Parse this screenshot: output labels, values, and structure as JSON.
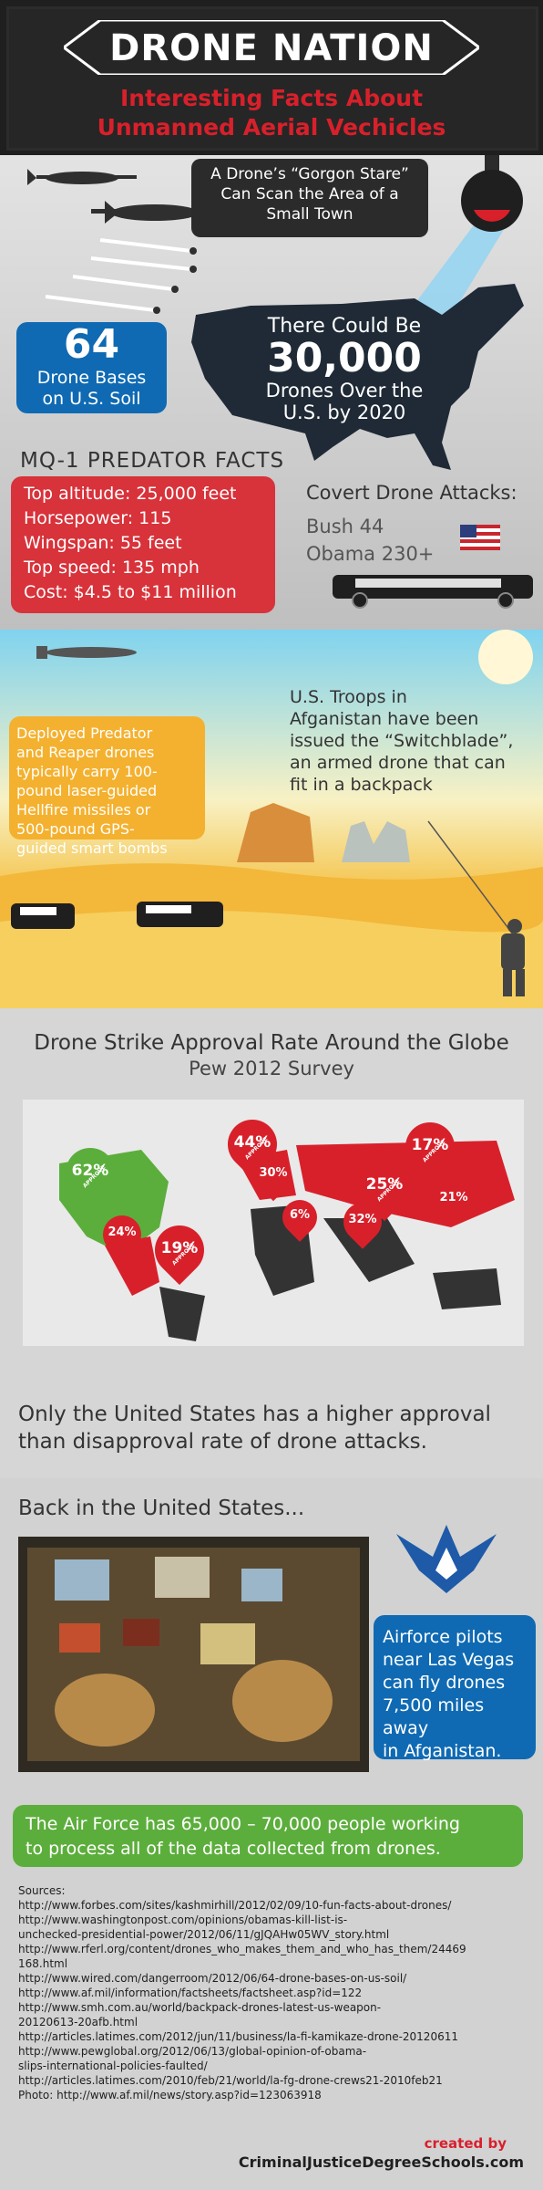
{
  "header": {
    "title": "DRONE NATION",
    "subtitle_line1": "Interesting Facts About",
    "subtitle_line2": "Unmanned Aerial Vechicles"
  },
  "gorgon": {
    "line1": "A Drone’s “Gorgon Stare”",
    "line2": "Can Scan the Area of a",
    "line3": "Small Town"
  },
  "us_map": {
    "line1": "There Could Be",
    "number": "30,000",
    "line3": "Drones Over the",
    "line4": "U.S. by 2020"
  },
  "bases": {
    "number": "64",
    "line1": "Drone Bases",
    "line2": "on U.S. Soil"
  },
  "predator": {
    "heading": "MQ-1 PREDATOR FACTS",
    "facts": [
      "Top altitude: 25,000 feet",
      "Horsepower: 115",
      "Wingspan: 55 feet",
      "Top speed: 135 mph",
      "Cost: $4.5 to $11 million"
    ]
  },
  "covert": {
    "heading": "Covert Drone Attacks:",
    "rows": [
      "Bush 44",
      "Obama 230+"
    ]
  },
  "desert": {
    "deployed": [
      "Deployed Predator",
      "and Reaper drones",
      "typically carry 100-",
      "pound laser-guided",
      "Hellfire missiles or",
      "500-pound GPS-",
      "guided smart bombs"
    ],
    "troops": [
      "U.S. Troops in",
      "Afganistan have been",
      "issued the “Switchblade”,",
      "an armed drone that can",
      "fit in a backpack"
    ]
  },
  "approval": {
    "title": "Drone Strike Approval Rate Around the Globe",
    "subtitle": "Pew 2012 Survey",
    "pin_label": "APPROVE",
    "pins": [
      {
        "value": "62%",
        "color": "#5cae3c"
      },
      {
        "value": "24%",
        "color": "#d8202b"
      },
      {
        "value": "19%",
        "color": "#d8202b"
      },
      {
        "value": "44%",
        "color": "#d8202b"
      },
      {
        "value": "30%",
        "color": "#d8202b"
      },
      {
        "value": "6%",
        "color": "#d8202b"
      },
      {
        "value": "25%",
        "color": "#d8202b"
      },
      {
        "value": "32%",
        "color": "#d8202b"
      },
      {
        "value": "17%",
        "color": "#d8202b"
      },
      {
        "value": "21%",
        "color": "#d8202b"
      }
    ],
    "note_line1": "Only the United States has a higher approval",
    "note_line2": "than disapproval rate of drone attacks."
  },
  "back_us": {
    "heading": "Back in the United States...",
    "airforce": [
      "Airforce pilots",
      "near Las Vegas",
      "can fly drones",
      "7,500 miles away",
      "in Afganistan."
    ]
  },
  "green_fact": {
    "line1": "The Air Force has 65,000 – 70,000 people working",
    "line2": "to process all of the data collected from drones."
  },
  "sources": {
    "label": "Sources:",
    "lines": [
      "http://www.forbes.com/sites/kashmirhill/2012/02/09/10-fun-facts-about-drones/",
      "http://www.washingtonpost.com/opinions/obamas-kill-list-is-",
      "unchecked-presidential-power/2012/06/11/gJQAHw05WV_story.html",
      "http://www.rferl.org/content/drones_who_makes_them_and_who_has_them/24469",
      "168.html",
      "http://www.wired.com/dangerroom/2012/06/64-drone-bases-on-us-soil/",
      "http://www.af.mil/information/factsheets/factsheet.asp?id=122",
      "http://www.smh.com.au/world/backpack-drones-latest-us-weapon-",
      "20120613-20afb.html",
      "http://articles.latimes.com/2012/jun/11/business/la-fi-kamikaze-drone-20120611",
      "http://www.pewglobal.org/2012/06/13/global-opinion-of-obama-",
      "slips-international-policies-faulted/",
      "http://articles.latimes.com/2010/feb/21/world/la-fg-drone-crews21-2010feb21",
      "Photo: http://www.af.mil/news/story.asp?id=123063918"
    ]
  },
  "credit": {
    "created_by": "created by",
    "site": "CriminalJusticeDegreeSchools.com"
  },
  "colors": {
    "red": "#d8202b",
    "blue": "#0f6ab3",
    "green": "#5cae3c",
    "orange": "#f4b12f",
    "dark": "#1f1f1f"
  }
}
